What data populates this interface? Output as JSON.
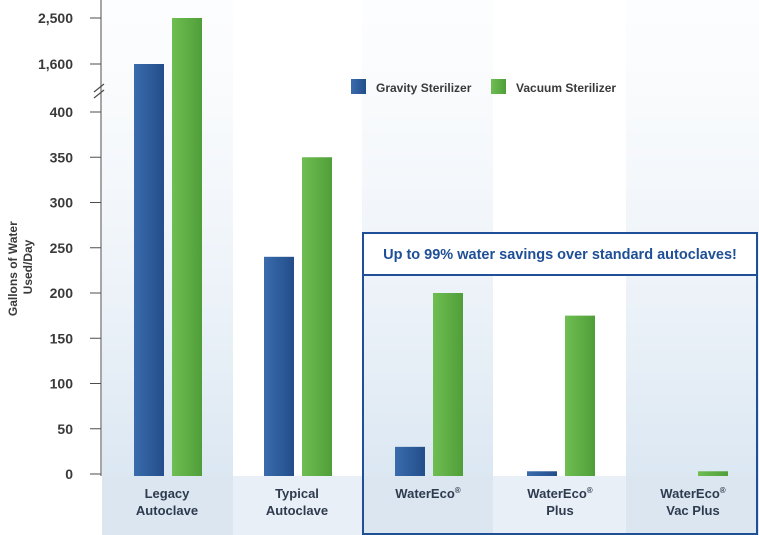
{
  "chart_data": {
    "type": "bar",
    "ylabel": "Gallons of Water Used/Day",
    "ytick_labels": [
      "0",
      "50",
      "100",
      "150",
      "200",
      "250",
      "300",
      "350",
      "400",
      "1,600",
      "2,500"
    ],
    "categories": [
      {
        "line1": "Legacy",
        "line2": "Autoclave"
      },
      {
        "line1": "Typical",
        "line2": "Autoclave"
      },
      {
        "line1": "WaterEco",
        "sup": "®",
        "line2": ""
      },
      {
        "line1": "WaterEco",
        "sup": "®",
        "line2": "Plus"
      },
      {
        "line1": "WaterEco",
        "sup": "®",
        "line2": "Vac Plus"
      }
    ],
    "series": [
      {
        "name": "Gravity Sterilizer",
        "color": "#2f5d9c",
        "values": [
          1600,
          240,
          30,
          3,
          0
        ]
      },
      {
        "name": "Vacuum Sterilizer",
        "color": "#5fb046",
        "values": [
          2500,
          350,
          200,
          175,
          3
        ]
      }
    ],
    "axis_break": "between 400 and 1,600",
    "legend_position": "top-right",
    "grid": false,
    "callout": "Up to 99% water savings over standard autoclaves!"
  }
}
